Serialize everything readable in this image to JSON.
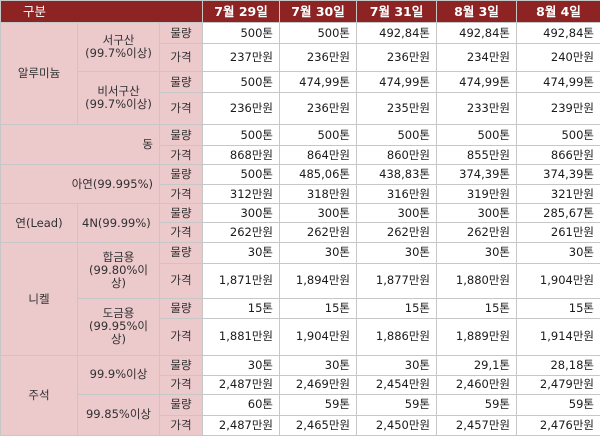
{
  "header": {
    "label": "구분",
    "dates": [
      "7월 29일",
      "7월 30일",
      "7월 31일",
      "8월 3일",
      "8월 4일"
    ]
  },
  "indicators": {
    "volume": "물량",
    "price": "가격"
  },
  "metals": [
    {
      "name": "알루미늄",
      "grades": [
        {
          "label": "서구산 (99.7%이상)",
          "volume": [
            "500톤",
            "500톤",
            "492,84톤",
            "492,84톤",
            "492,84톤"
          ],
          "price": [
            "237만원",
            "236만원",
            "236만원",
            "234만원",
            "240만원"
          ]
        },
        {
          "label": "비서구산 (99.7%이상)",
          "volume": [
            "500톤",
            "474,99톤",
            "474,99톤",
            "474,99톤",
            "474,99톤"
          ],
          "price": [
            "236만원",
            "236만원",
            "235만원",
            "233만원",
            "239만원"
          ]
        }
      ]
    },
    {
      "name": "동",
      "volume": [
        "500톤",
        "500톤",
        "500톤",
        "500톤",
        "500톤"
      ],
      "price": [
        "868만원",
        "864만원",
        "860만원",
        "855만원",
        "866만원"
      ]
    },
    {
      "name": "아연(99.995%)",
      "volume": [
        "500톤",
        "485,06톤",
        "438,83톤",
        "374,39톤",
        "374,39톤"
      ],
      "price": [
        "312만원",
        "318만원",
        "316만원",
        "319만원",
        "321만원"
      ]
    },
    {
      "name": "연(Lead)",
      "grade": "4N(99.99%)",
      "volume": [
        "300톤",
        "300톤",
        "300톤",
        "300톤",
        "285,67톤"
      ],
      "price": [
        "262만원",
        "262만원",
        "262만원",
        "262만원",
        "261만원"
      ]
    },
    {
      "name": "니켈",
      "grades": [
        {
          "label": "합금용 (99.80%이상)",
          "volume": [
            "30톤",
            "30톤",
            "30톤",
            "30톤",
            "30톤"
          ],
          "price": [
            "1,871만원",
            "1,894만원",
            "1,877만원",
            "1,880만원",
            "1,904만원"
          ]
        },
        {
          "label": "도금용 (99.95%이상)",
          "volume": [
            "15톤",
            "15톤",
            "15톤",
            "15톤",
            "15톤"
          ],
          "price": [
            "1,881만원",
            "1,904만원",
            "1,886만원",
            "1,889만원",
            "1,914만원"
          ]
        }
      ]
    },
    {
      "name": "주석",
      "grades": [
        {
          "label": "99.9%이상",
          "volume": [
            "30톤",
            "30톤",
            "30톤",
            "29,1톤",
            "28,18톤"
          ],
          "price": [
            "2,487만원",
            "2,469만원",
            "2,454만원",
            "2,460만원",
            "2,479만원"
          ]
        },
        {
          "label": "99.85%이상",
          "volume": [
            "60톤",
            "59톤",
            "59톤",
            "59톤",
            "59톤"
          ],
          "price": [
            "2,487만원",
            "2,465만원",
            "2,450만원",
            "2,457만원",
            "2,476만원"
          ]
        }
      ]
    }
  ]
}
